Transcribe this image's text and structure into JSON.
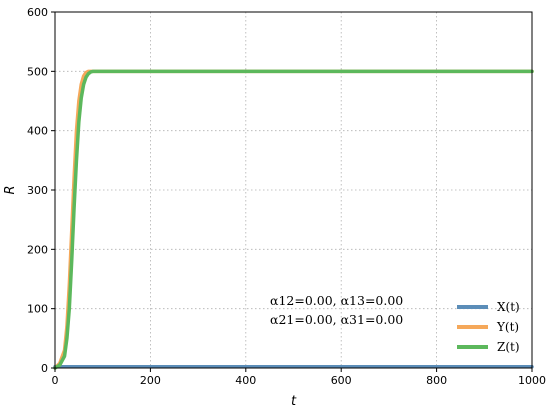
{
  "chart_data": {
    "type": "line",
    "xlabel": "t",
    "ylabel": "R",
    "xlim": [
      0,
      1000
    ],
    "ylim": [
      0,
      600
    ],
    "xticks": [
      0,
      200,
      400,
      600,
      800,
      1000
    ],
    "yticks": [
      0,
      100,
      200,
      300,
      400,
      500,
      600
    ],
    "grid": true,
    "legend_position": "lower-right",
    "annotation": {
      "line1": "α12=0.00, α13=0.00",
      "line2": "α21=0.00, α31=0.00"
    },
    "series": [
      {
        "name": "X(t)",
        "color": "#5b8db8",
        "x": [
          0,
          100,
          200,
          300,
          400,
          500,
          600,
          700,
          800,
          900,
          1000
        ],
        "y": [
          2,
          2,
          2,
          2,
          2,
          2,
          2,
          2,
          2,
          2,
          2
        ]
      },
      {
        "name": "Y(t)",
        "color": "#f5a85a",
        "x": [
          0,
          10,
          20,
          25,
          30,
          35,
          40,
          45,
          50,
          55,
          60,
          65,
          70,
          75,
          80,
          90,
          100,
          200,
          400,
          600,
          800,
          1000
        ],
        "y": [
          0,
          8,
          30,
          70,
          140,
          230,
          320,
          400,
          450,
          478,
          492,
          498,
          500,
          500,
          500,
          500,
          500,
          500,
          500,
          500,
          500,
          500
        ]
      },
      {
        "name": "Z(t)",
        "color": "#5cb85c",
        "x": [
          0,
          10,
          20,
          25,
          30,
          35,
          40,
          45,
          50,
          55,
          60,
          65,
          70,
          75,
          80,
          85,
          90,
          100,
          200,
          400,
          600,
          800,
          1000
        ],
        "y": [
          0,
          5,
          20,
          50,
          100,
          180,
          270,
          350,
          415,
          455,
          478,
          490,
          496,
          499,
          500,
          500,
          500,
          500,
          500,
          500,
          500,
          500,
          500
        ]
      }
    ]
  }
}
